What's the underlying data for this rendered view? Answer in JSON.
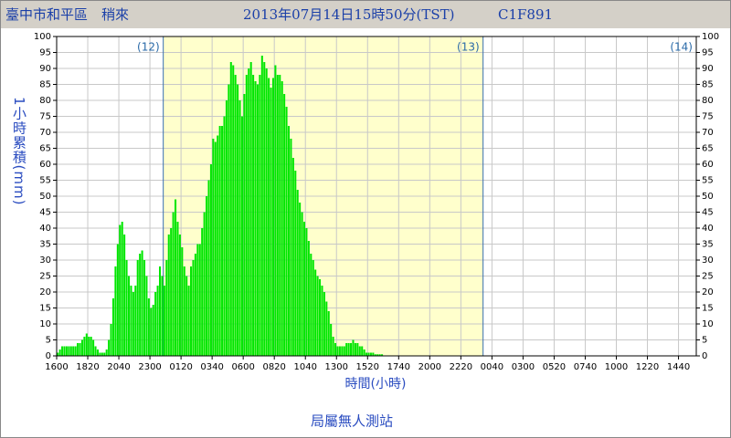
{
  "chart_data": {
    "type": "bar",
    "title": "臺中市和平區　稍來",
    "subtitle": "2013年07月14日15時50分(TST)",
    "station_id": "C1F891",
    "y_label": "1小時累積(mm)",
    "x_label": "時間(小時)",
    "footer": "局屬無人測站",
    "day_markers": [
      "(12)",
      "(13)",
      "(14)"
    ],
    "color": "#00e600",
    "grid": true,
    "ylim": [
      0,
      100
    ],
    "yticks": [
      0,
      5,
      10,
      15,
      20,
      25,
      30,
      35,
      40,
      45,
      50,
      55,
      60,
      65,
      70,
      75,
      80,
      85,
      90,
      95,
      100
    ],
    "categories": [
      "1600",
      null,
      null,
      null,
      null,
      null,
      null,
      null,
      null,
      null,
      null,
      null,
      null,
      null,
      "1820",
      null,
      null,
      null,
      null,
      null,
      null,
      null,
      null,
      null,
      null,
      null,
      null,
      null,
      "2040",
      null,
      null,
      null,
      null,
      null,
      null,
      null,
      null,
      null,
      null,
      null,
      null,
      null,
      "2300",
      null,
      null,
      null,
      null,
      null,
      null,
      null,
      null,
      null,
      null,
      null,
      null,
      null,
      "0120",
      null,
      null,
      null,
      null,
      null,
      null,
      null,
      null,
      null,
      null,
      null,
      null,
      null,
      "0340",
      null,
      null,
      null,
      null,
      null,
      null,
      null,
      null,
      null,
      null,
      null,
      null,
      null,
      "0600",
      null,
      null,
      null,
      null,
      null,
      null,
      null,
      null,
      null,
      null,
      null,
      null,
      null,
      "0820",
      null,
      null,
      null,
      null,
      null,
      null,
      null,
      null,
      null,
      null,
      null,
      null,
      null,
      "1040",
      null,
      null,
      null,
      null,
      null,
      null,
      null,
      null,
      null,
      null,
      null,
      null,
      null,
      "1300",
      null,
      null,
      null,
      null,
      null,
      null,
      null,
      null,
      null,
      null,
      null,
      null,
      null,
      "1520",
      null,
      null,
      null,
      null,
      null,
      null,
      null,
      null,
      null,
      null,
      null,
      null,
      null,
      "1740",
      null,
      null,
      null,
      null,
      null,
      null,
      null,
      null,
      null,
      null,
      null,
      null,
      null,
      "2000",
      null,
      null,
      null,
      null,
      null,
      null,
      null,
      null,
      null,
      null,
      null,
      null,
      null,
      "2220",
      null,
      null,
      null,
      null,
      null,
      null,
      null,
      null,
      null,
      null,
      null,
      null,
      null,
      "0040",
      null,
      null,
      null,
      null,
      null,
      null,
      null,
      null,
      null,
      null,
      null,
      null,
      null,
      "0300",
      null,
      null,
      null,
      null,
      null,
      null,
      null,
      null,
      null,
      null,
      null,
      null,
      null,
      "0520",
      null,
      null,
      null,
      null,
      null,
      null,
      null,
      null,
      null,
      null,
      null,
      null,
      null,
      "0740",
      null,
      null,
      null,
      null,
      null,
      null,
      null,
      null,
      null,
      null,
      null,
      null,
      null,
      "1000",
      null,
      null,
      null,
      null,
      null,
      null,
      null,
      null,
      null,
      null,
      null,
      null,
      null,
      "1220",
      null,
      null,
      null,
      null,
      null,
      null,
      null,
      null,
      null,
      null,
      null,
      null,
      null,
      "1440",
      null,
      null,
      null,
      null,
      null,
      null,
      null
    ],
    "values": [
      1,
      2,
      3,
      3,
      3,
      3,
      3,
      3,
      3,
      4,
      4,
      5,
      6,
      7,
      6,
      6,
      5,
      3,
      2,
      1,
      1,
      1,
      2,
      5,
      10,
      18,
      28,
      35,
      41,
      42,
      38,
      30,
      25,
      22,
      20,
      22,
      30,
      32,
      33,
      30,
      25,
      18,
      15,
      16,
      20,
      22,
      28,
      25,
      22,
      30,
      38,
      40,
      45,
      49,
      42,
      38,
      34,
      28,
      25,
      22,
      28,
      30,
      32,
      35,
      35,
      40,
      45,
      50,
      55,
      60,
      68,
      67,
      69,
      72,
      72,
      75,
      80,
      85,
      92,
      91,
      88,
      85,
      80,
      75,
      82,
      88,
      90,
      92,
      88,
      86,
      85,
      88,
      94,
      92,
      90,
      87,
      84,
      87,
      91,
      88,
      88,
      86,
      82,
      78,
      72,
      68,
      62,
      58,
      52,
      48,
      45,
      42,
      40,
      36,
      32,
      30,
      27,
      25,
      24,
      22,
      20,
      17,
      14,
      10,
      6,
      4,
      3,
      3,
      3,
      3,
      4,
      4,
      4,
      5,
      4,
      4,
      3,
      3,
      2,
      1,
      1,
      1,
      1,
      0.5,
      0.5,
      0.5,
      0.5,
      null,
      null,
      null,
      null,
      null,
      null,
      null,
      null,
      null,
      null,
      null,
      null,
      null,
      null,
      null,
      null,
      null,
      null,
      null,
      null,
      null,
      null,
      null,
      null,
      null,
      null,
      null,
      null,
      null,
      null,
      null,
      null,
      null,
      null,
      null,
      null,
      null,
      null,
      null,
      null,
      null,
      null,
      null,
      null,
      null,
      null,
      null,
      null,
      null,
      null,
      null,
      null,
      null,
      null,
      null,
      null,
      null,
      null,
      null,
      null,
      null,
      null,
      null,
      null,
      null,
      null,
      null,
      null,
      null,
      null,
      null,
      null,
      null,
      null,
      null,
      null,
      null,
      null,
      null,
      null,
      null,
      null,
      null,
      null,
      null,
      null,
      null,
      null,
      null,
      null,
      null,
      null,
      null,
      null,
      null,
      null,
      null,
      null,
      null,
      null,
      null,
      null,
      null,
      null,
      null,
      null,
      null,
      null,
      null,
      null,
      null,
      null,
      null,
      null,
      null,
      null,
      null,
      null,
      null,
      null,
      null,
      null,
      null,
      null,
      null,
      null,
      null,
      null,
      null,
      null,
      null,
      null,
      null,
      null,
      null,
      null,
      null,
      null,
      null,
      null,
      null
    ]
  }
}
